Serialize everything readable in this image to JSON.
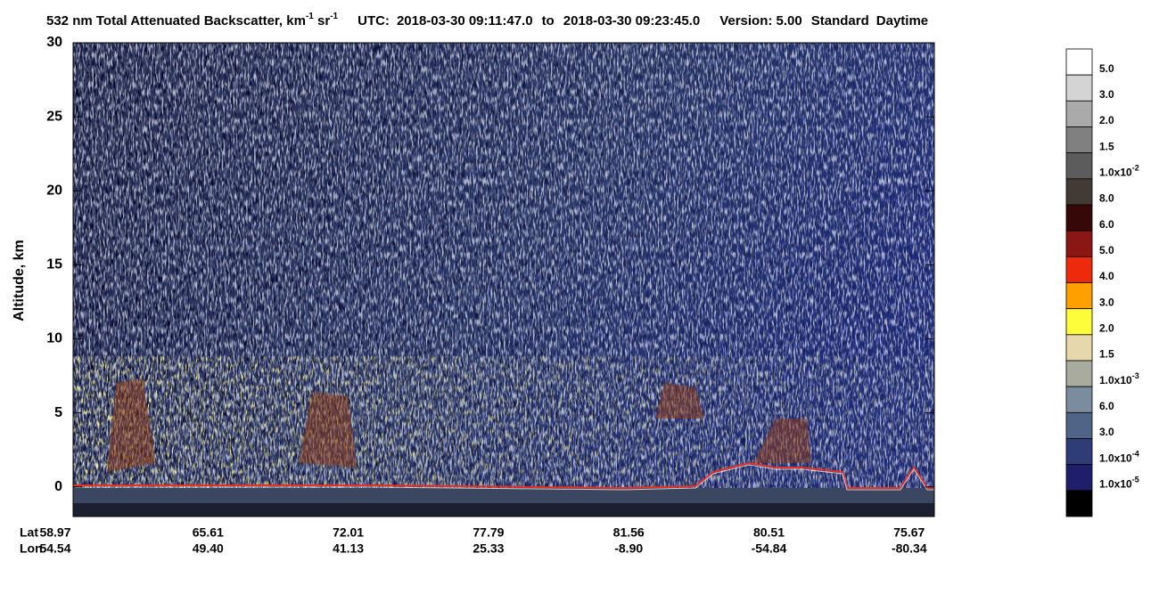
{
  "chart_data": {
    "type": "curtain",
    "title_parts": [
      "532 nm Total Attenuated Backscatter, km",
      "-1",
      " sr",
      "-1"
    ],
    "utc_label": "UTC:",
    "start_time": "2018-03-30 09:11:47.0",
    "to_label": "to",
    "end_time": "2018-03-30 09:23:45.0",
    "version": "Version: 5.00",
    "product": "Standard",
    "daynight": "Daytime",
    "ylabel": "Altitude, km",
    "ylim": [
      -2,
      30
    ],
    "yticks": [
      0,
      5,
      10,
      15,
      20,
      25,
      30
    ],
    "x_row_labels": [
      "Lat",
      "Lon"
    ],
    "lat": [
      "58.97",
      "65.61",
      "72.01",
      "77.79",
      "81.56",
      "80.51",
      "75.67"
    ],
    "lon": [
      "54.54",
      "49.40",
      "41.13",
      "25.33",
      "-8.90",
      "-54.84",
      "-80.34"
    ],
    "colorbar": [
      {
        "color": "#ffffff",
        "label": "5.0"
      },
      {
        "color": "#d4d4d4",
        "label": "3.0"
      },
      {
        "color": "#aaaaaa",
        "label": "2.0"
      },
      {
        "color": "#808080",
        "label": "1.5"
      },
      {
        "color": "#5c5c5c",
        "label": "1.0x10",
        "exp": "-2"
      },
      {
        "color": "#433a36",
        "label": "8.0"
      },
      {
        "color": "#360808",
        "label": "6.0"
      },
      {
        "color": "#8a1714",
        "label": "5.0"
      },
      {
        "color": "#ee2a0c",
        "label": "4.0"
      },
      {
        "color": "#ff9f00",
        "label": "3.0"
      },
      {
        "color": "#fdfd3c",
        "label": "2.0"
      },
      {
        "color": "#e6d8ab",
        "label": "1.5"
      },
      {
        "color": "#a9ab9f",
        "label": "1.0x10",
        "exp": "-3"
      },
      {
        "color": "#7a8c9e",
        "label": "6.0"
      },
      {
        "color": "#4f6486",
        "label": "3.0"
      },
      {
        "color": "#2e3c78",
        "label": "1.0x10",
        "exp": "-4"
      },
      {
        "color": "#1e1e6a",
        "label": "1.0x10",
        "exp": "-5"
      },
      {
        "color": "#000000"
      }
    ]
  }
}
